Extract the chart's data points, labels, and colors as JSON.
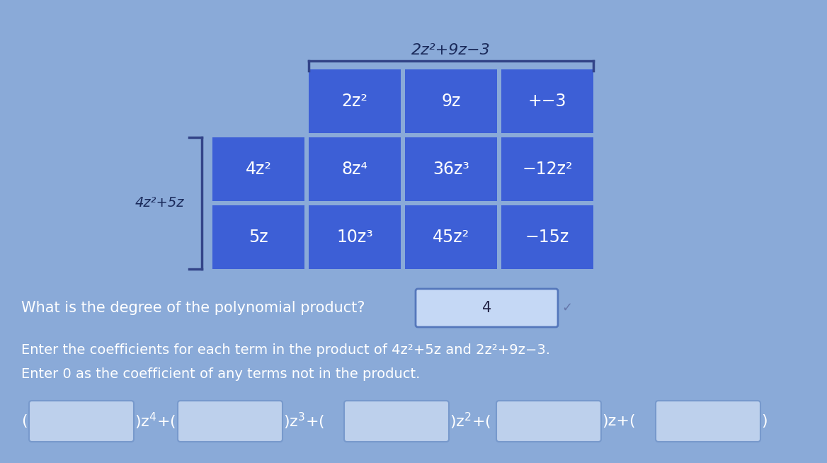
{
  "bg_color": "#8aaad8",
  "cell_color": "#3d5fd6",
  "white": "#ffffff",
  "top_expr": "2z²+9z−3",
  "left_expr": "4z²+5z",
  "header_row": [
    "2z²",
    "9z",
    "+−3"
  ],
  "row1_label": "4z²",
  "row2_label": "5z",
  "row1_cells": [
    "8z⁴",
    "36z³",
    "−12z²"
  ],
  "row2_cells": [
    "10z³",
    "45z²",
    "−15z"
  ],
  "degree_question": "What is the degree of the polynomial product?",
  "degree_answer": "4",
  "coeff_intro1": "Enter the coefficients for each term in the product of 4z²+5z and 2z²+9z−3.",
  "coeff_intro2": "Enter 0 as the coefficient of any terms not in the product.",
  "ans_box_bg": "#c5d8f5",
  "ans_box_edge": "#5577bb",
  "inp_box_bg": "#bdd0ec",
  "inp_box_edge": "#7799cc"
}
